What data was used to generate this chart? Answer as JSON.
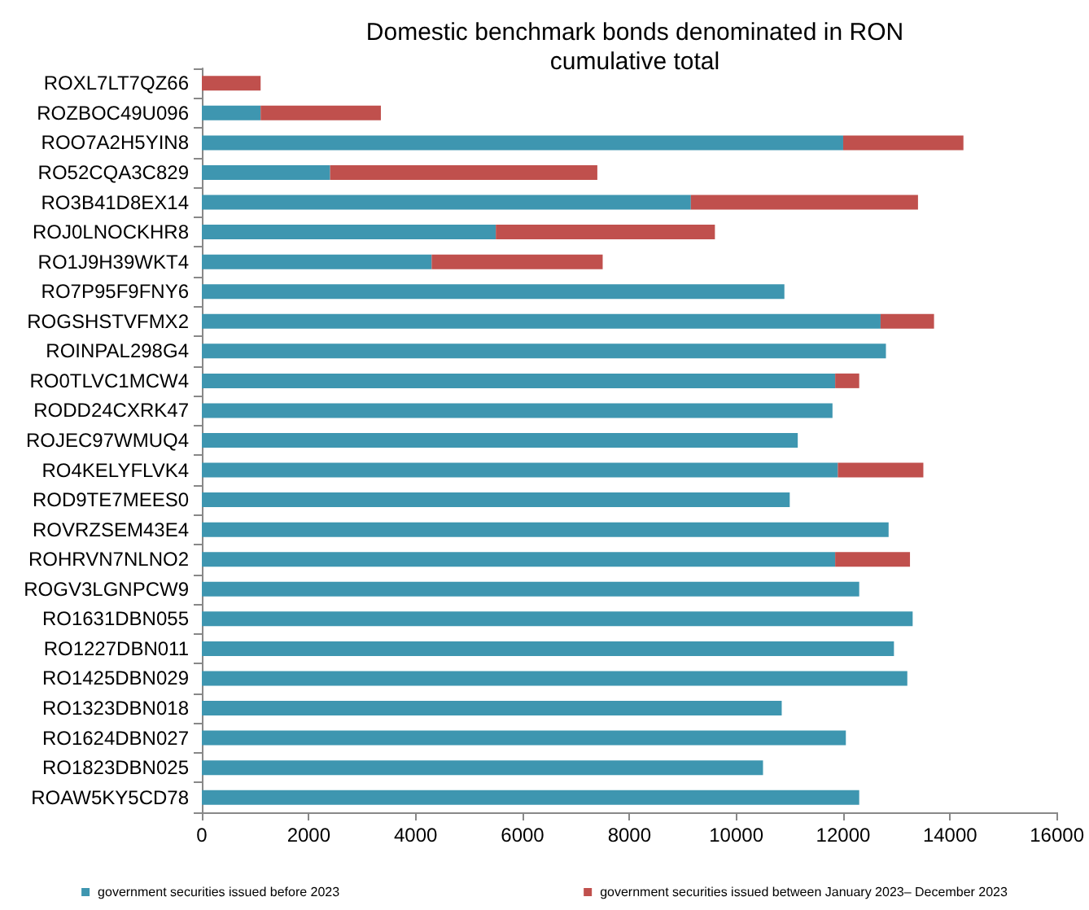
{
  "chart_data": {
    "type": "bar",
    "orientation": "horizontal",
    "stacked": true,
    "title": "Domestic benchmark bonds denominated in RON\ncumulative total",
    "categories": [
      "ROXL7LT7QZ66",
      "ROZBOC49U096",
      "ROO7A2H5YIN8",
      "RO52CQA3C829",
      "RO3B41D8EX14",
      "ROJ0LNOCKHR8",
      "RO1J9H39WKT4",
      "RO7P95F9FNY6",
      "ROGSHSTVFMX2",
      "ROINPAL298G4",
      "RO0TLVC1MCW4",
      "RODD24CXRK47",
      "ROJEC97WMUQ4",
      "RO4KELYFLVK4",
      "ROD9TE7MEES0",
      "ROVRZSEM43E4",
      "ROHRVN7NLNO2",
      "ROGV3LGNPCW9",
      "RO1631DBN055",
      "RO1227DBN011",
      "RO1425DBN029",
      "RO1323DBN018",
      "RO1624DBN027",
      "RO1823DBN025",
      "ROAW5KY5CD78"
    ],
    "series": [
      {
        "name": "government securities issued before 2023",
        "color": "#3e96b0",
        "values": [
          null,
          1100,
          12000,
          2400,
          9150,
          5500,
          4300,
          10900,
          12700,
          12800,
          11850,
          11800,
          11150,
          11900,
          11000,
          12850,
          11850,
          12300,
          13300,
          12950,
          13200,
          10850,
          12050,
          10500,
          12300
        ]
      },
      {
        "name": "government securities issued between January 2023– December 2023",
        "color": "#c0504d",
        "values": [
          1100,
          2250,
          2250,
          5000,
          4250,
          4100,
          3200,
          null,
          1000,
          null,
          450,
          null,
          null,
          1600,
          null,
          null,
          1400,
          null,
          null,
          null,
          null,
          null,
          null,
          null,
          null
        ]
      }
    ],
    "xlim": [
      0,
      16000
    ],
    "xticks": [
      0,
      2000,
      4000,
      6000,
      8000,
      10000,
      12000,
      14000,
      16000
    ],
    "grid": false,
    "legend": "bottom"
  }
}
